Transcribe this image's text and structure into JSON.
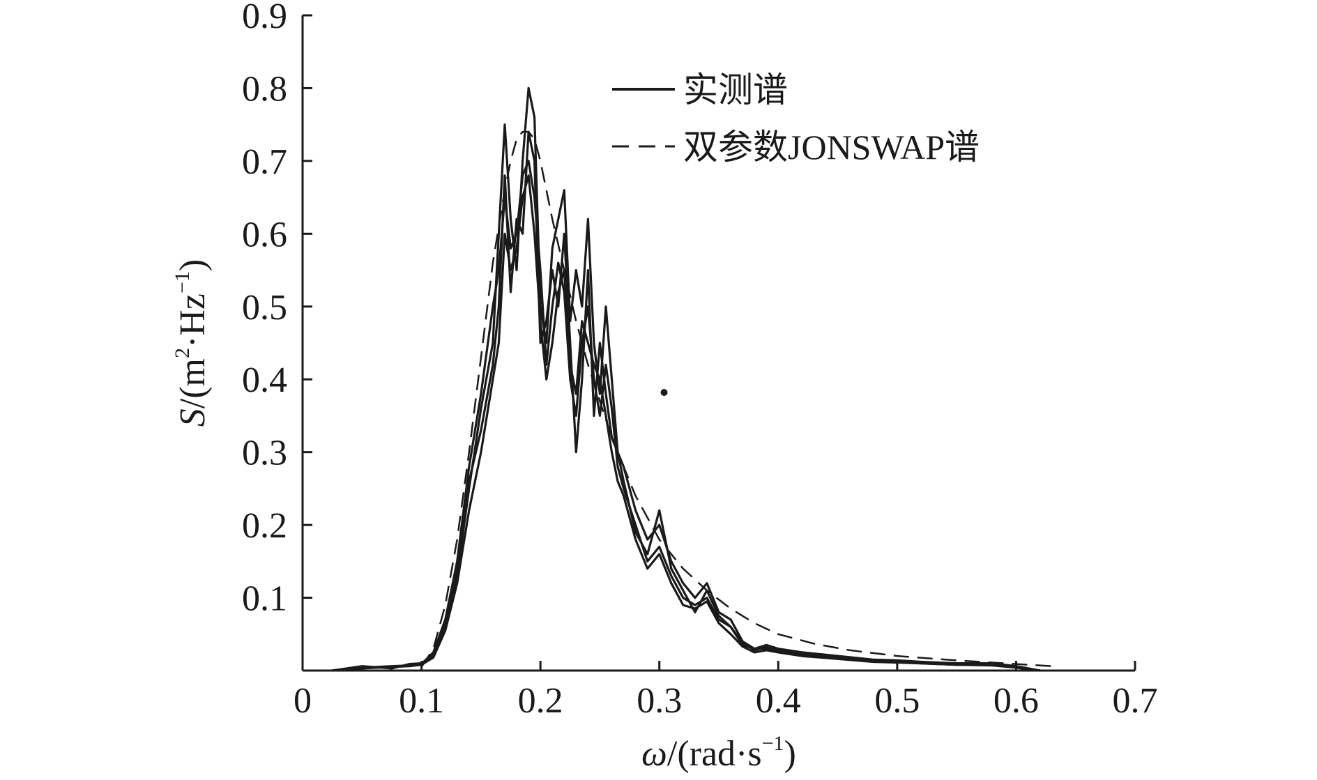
{
  "chart_data": {
    "type": "line",
    "title": "",
    "xlabel": {
      "symbol": "ω",
      "unit_prefix": "/(rad·s",
      "exponent": "−1",
      "suffix": ")"
    },
    "ylabel": {
      "symbol": "S",
      "unit_prefix": "/(m",
      "exp1": "2",
      "unit_mid": "·Hz",
      "exp2": "−1",
      "suffix": ")"
    },
    "xlim": [
      0,
      0.7
    ],
    "ylim": [
      0,
      0.9
    ],
    "x_ticks": [
      {
        "value": 0,
        "label": "0"
      },
      {
        "value": 0.1,
        "label": "0.1"
      },
      {
        "value": 0.2,
        "label": "0.2"
      },
      {
        "value": 0.3,
        "label": "0.3"
      },
      {
        "value": 0.4,
        "label": "0.4"
      },
      {
        "value": 0.5,
        "label": "0.5"
      },
      {
        "value": 0.6,
        "label": "0.6"
      },
      {
        "value": 0.7,
        "label": "0.7"
      }
    ],
    "y_ticks": [
      {
        "value": 0.1,
        "label": "0.1"
      },
      {
        "value": 0.2,
        "label": "0.2"
      },
      {
        "value": 0.3,
        "label": "0.3"
      },
      {
        "value": 0.4,
        "label": "0.4"
      },
      {
        "value": 0.5,
        "label": "0.5"
      },
      {
        "value": 0.6,
        "label": "0.6"
      },
      {
        "value": 0.7,
        "label": "0.7"
      },
      {
        "value": 0.8,
        "label": "0.8"
      },
      {
        "value": 0.9,
        "label": "0.9"
      }
    ],
    "grid": false,
    "legend_position": "top-right",
    "legend": [
      {
        "label": "实测谱",
        "style": "solid"
      },
      {
        "label": "双参数JONSWAP谱",
        "style": "dashed"
      }
    ],
    "series": [
      {
        "style": "solid",
        "group": "measured",
        "x": [
          0.025,
          0.05,
          0.075,
          0.09,
          0.1,
          0.11,
          0.12,
          0.13,
          0.14,
          0.15,
          0.16,
          0.165,
          0.17,
          0.175,
          0.18,
          0.185,
          0.19,
          0.195,
          0.2,
          0.205,
          0.21,
          0.215,
          0.22,
          0.225,
          0.23,
          0.235,
          0.24,
          0.245,
          0.25,
          0.255,
          0.26,
          0.265,
          0.27,
          0.28,
          0.29,
          0.3,
          0.31,
          0.32,
          0.33,
          0.34,
          0.35,
          0.36,
          0.37,
          0.38,
          0.39,
          0.4,
          0.42,
          0.45,
          0.48,
          0.5,
          0.52,
          0.55,
          0.58,
          0.6,
          0.62
        ],
        "y": [
          0.0,
          0.005,
          0.004,
          0.008,
          0.008,
          0.02,
          0.06,
          0.13,
          0.25,
          0.36,
          0.45,
          0.6,
          0.75,
          0.62,
          0.55,
          0.7,
          0.8,
          0.76,
          0.5,
          0.45,
          0.58,
          0.62,
          0.66,
          0.48,
          0.55,
          0.5,
          0.62,
          0.45,
          0.38,
          0.5,
          0.4,
          0.3,
          0.28,
          0.22,
          0.18,
          0.2,
          0.15,
          0.12,
          0.1,
          0.12,
          0.08,
          0.07,
          0.04,
          0.03,
          0.035,
          0.03,
          0.025,
          0.02,
          0.015,
          0.014,
          0.012,
          0.01,
          0.01,
          0.006,
          0.0
        ]
      },
      {
        "style": "solid",
        "group": "measured",
        "x": [
          0.025,
          0.05,
          0.075,
          0.09,
          0.1,
          0.11,
          0.12,
          0.13,
          0.14,
          0.15,
          0.16,
          0.165,
          0.17,
          0.175,
          0.18,
          0.185,
          0.19,
          0.195,
          0.2,
          0.205,
          0.21,
          0.215,
          0.22,
          0.225,
          0.23,
          0.235,
          0.24,
          0.245,
          0.25,
          0.255,
          0.26,
          0.265,
          0.27,
          0.28,
          0.29,
          0.3,
          0.31,
          0.32,
          0.33,
          0.34,
          0.35,
          0.36,
          0.37,
          0.38,
          0.39,
          0.4,
          0.42,
          0.45,
          0.48,
          0.5,
          0.52,
          0.55,
          0.58,
          0.6,
          0.62
        ],
        "y": [
          0.0,
          0.004,
          0.006,
          0.007,
          0.009,
          0.025,
          0.07,
          0.15,
          0.28,
          0.38,
          0.5,
          0.55,
          0.65,
          0.58,
          0.6,
          0.68,
          0.7,
          0.65,
          0.55,
          0.42,
          0.5,
          0.56,
          0.52,
          0.4,
          0.35,
          0.45,
          0.5,
          0.4,
          0.35,
          0.42,
          0.36,
          0.28,
          0.25,
          0.2,
          0.15,
          0.17,
          0.13,
          0.1,
          0.09,
          0.1,
          0.07,
          0.06,
          0.035,
          0.03,
          0.03,
          0.028,
          0.022,
          0.018,
          0.014,
          0.012,
          0.011,
          0.009,
          0.008,
          0.005,
          0.0
        ]
      },
      {
        "style": "solid",
        "group": "measured",
        "x": [
          0.025,
          0.05,
          0.075,
          0.09,
          0.1,
          0.11,
          0.12,
          0.13,
          0.14,
          0.15,
          0.16,
          0.165,
          0.17,
          0.175,
          0.18,
          0.185,
          0.19,
          0.195,
          0.2,
          0.205,
          0.21,
          0.215,
          0.22,
          0.225,
          0.23,
          0.235,
          0.24,
          0.245,
          0.25,
          0.255,
          0.26,
          0.265,
          0.27,
          0.28,
          0.29,
          0.3,
          0.31,
          0.32,
          0.33,
          0.34,
          0.35,
          0.36,
          0.37,
          0.38,
          0.39,
          0.4,
          0.42,
          0.45,
          0.48,
          0.5,
          0.52,
          0.55,
          0.58,
          0.6,
          0.62
        ],
        "y": [
          0.0,
          0.006,
          0.003,
          0.009,
          0.01,
          0.022,
          0.065,
          0.14,
          0.26,
          0.33,
          0.42,
          0.5,
          0.68,
          0.52,
          0.62,
          0.6,
          0.74,
          0.7,
          0.45,
          0.48,
          0.55,
          0.5,
          0.6,
          0.45,
          0.3,
          0.4,
          0.55,
          0.35,
          0.45,
          0.38,
          0.32,
          0.3,
          0.26,
          0.19,
          0.16,
          0.22,
          0.14,
          0.11,
          0.08,
          0.11,
          0.075,
          0.06,
          0.038,
          0.028,
          0.032,
          0.027,
          0.02,
          0.017,
          0.013,
          0.012,
          0.01,
          0.008,
          0.009,
          0.004,
          0.0
        ]
      },
      {
        "style": "solid",
        "group": "measured",
        "x": [
          0.025,
          0.05,
          0.075,
          0.09,
          0.1,
          0.11,
          0.12,
          0.13,
          0.14,
          0.15,
          0.16,
          0.165,
          0.17,
          0.175,
          0.18,
          0.185,
          0.19,
          0.195,
          0.2,
          0.205,
          0.21,
          0.215,
          0.22,
          0.225,
          0.23,
          0.235,
          0.24,
          0.245,
          0.25,
          0.255,
          0.26,
          0.265,
          0.27,
          0.28,
          0.29,
          0.3,
          0.31,
          0.32,
          0.33,
          0.34,
          0.35,
          0.36,
          0.37,
          0.38,
          0.39,
          0.4,
          0.42,
          0.45,
          0.48,
          0.5,
          0.52,
          0.55,
          0.58,
          0.6,
          0.62
        ],
        "y": [
          0.0,
          0.003,
          0.005,
          0.006,
          0.008,
          0.018,
          0.055,
          0.12,
          0.22,
          0.3,
          0.4,
          0.45,
          0.6,
          0.55,
          0.58,
          0.65,
          0.68,
          0.6,
          0.48,
          0.4,
          0.45,
          0.52,
          0.55,
          0.42,
          0.38,
          0.48,
          0.45,
          0.42,
          0.4,
          0.35,
          0.3,
          0.26,
          0.24,
          0.18,
          0.14,
          0.16,
          0.12,
          0.09,
          0.085,
          0.095,
          0.065,
          0.05,
          0.033,
          0.025,
          0.028,
          0.025,
          0.02,
          0.016,
          0.012,
          0.011,
          0.01,
          0.008,
          0.007,
          0.004,
          0.0
        ]
      }
    ],
    "fitted": {
      "style": "dashed",
      "group": "jonswap",
      "x": [
        0.1,
        0.11,
        0.12,
        0.13,
        0.14,
        0.15,
        0.16,
        0.17,
        0.175,
        0.18,
        0.185,
        0.19,
        0.195,
        0.2,
        0.21,
        0.22,
        0.23,
        0.24,
        0.25,
        0.26,
        0.27,
        0.28,
        0.29,
        0.3,
        0.32,
        0.34,
        0.36,
        0.38,
        0.4,
        0.43,
        0.46,
        0.5,
        0.55,
        0.6,
        0.63
      ],
      "y": [
        0.005,
        0.03,
        0.09,
        0.18,
        0.3,
        0.43,
        0.56,
        0.66,
        0.7,
        0.73,
        0.74,
        0.74,
        0.73,
        0.7,
        0.62,
        0.55,
        0.48,
        0.42,
        0.37,
        0.32,
        0.28,
        0.24,
        0.21,
        0.18,
        0.14,
        0.11,
        0.085,
        0.065,
        0.05,
        0.037,
        0.028,
        0.02,
        0.014,
        0.009,
        0.006
      ]
    },
    "outlier_points": [
      {
        "x": 0.304,
        "y": 0.382
      }
    ]
  }
}
